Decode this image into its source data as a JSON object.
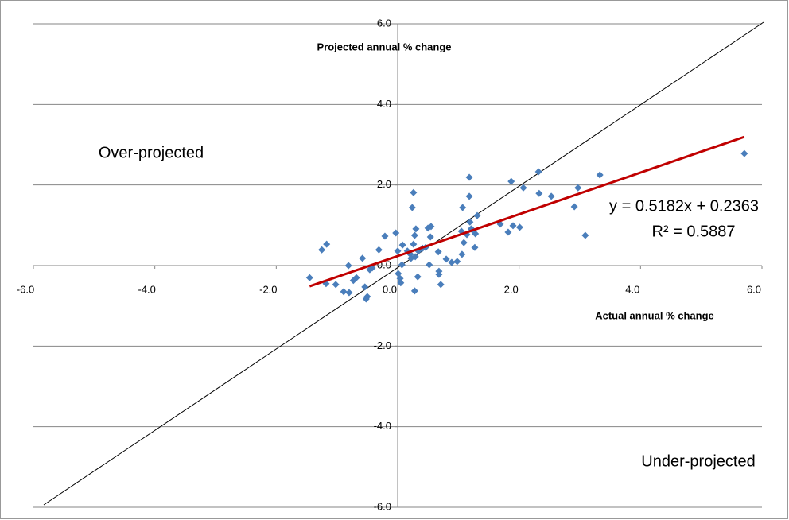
{
  "chart_data": {
    "type": "scatter",
    "x_label": "Actual annual % change",
    "y_label": "Projected annual % change",
    "annotations": [
      "Over-projected",
      "Under-projected"
    ],
    "xlim": [
      -6,
      6
    ],
    "ylim": [
      -6,
      6
    ],
    "xticks": [
      {
        "value": -6,
        "label": "-6.0"
      },
      {
        "value": -4,
        "label": "-4.0"
      },
      {
        "value": -2,
        "label": "-2.0"
      },
      {
        "value": 0,
        "label": "0.0"
      },
      {
        "value": 2,
        "label": "2.0"
      },
      {
        "value": 4,
        "label": "4.0"
      },
      {
        "value": 6,
        "label": "6.0"
      }
    ],
    "yticks": [
      {
        "value": -6,
        "label": "-6.0"
      },
      {
        "value": -4,
        "label": "-4.0"
      },
      {
        "value": -2,
        "label": "-2.0"
      },
      {
        "value": 0,
        "label": "0.0"
      },
      {
        "value": 2,
        "label": "2.0"
      },
      {
        "value": 4,
        "label": "4.0"
      },
      {
        "value": 6,
        "label": "6.0"
      }
    ],
    "grid": true,
    "color": "#4a7ebb",
    "x": [
      -1.45,
      -1.25,
      -1.17,
      -1.18,
      -1.02,
      -0.89,
      -0.8,
      -0.81,
      -0.73,
      -0.68,
      -0.58,
      -0.54,
      -0.52,
      -0.5,
      -0.46,
      -0.31,
      -0.21,
      -0.03,
      0.0,
      0.01,
      0.04,
      0.05,
      0.07,
      0.16,
      0.21,
      0.22,
      0.24,
      0.26,
      0.26,
      0.28,
      0.29,
      0.3,
      0.28,
      0.33,
      0.41,
      0.46,
      0.5,
      0.52,
      0.55,
      0.67,
      0.68,
      0.71,
      0.68,
      0.98,
      1.06,
      1.07,
      1.09,
      1.14,
      1.18,
      1.19,
      1.23,
      1.27,
      1.28,
      1.31,
      1.69,
      1.82,
      1.87,
      1.9,
      2.01,
      2.07,
      2.32,
      2.33,
      2.53,
      2.91,
      2.97,
      3.09,
      3.33,
      5.71,
      1.18,
      0.8,
      0.89,
      0.54,
      0.08,
      0.34,
      -0.42,
      1.05,
      1.21
    ],
    "values": [
      -0.3,
      0.39,
      0.53,
      -0.45,
      -0.47,
      -0.65,
      -0.67,
      0.0,
      -0.37,
      -0.3,
      0.18,
      -0.53,
      -0.83,
      -0.77,
      -0.1,
      0.39,
      0.73,
      0.81,
      0.36,
      -0.2,
      -0.32,
      -0.43,
      0.02,
      0.36,
      0.28,
      0.18,
      1.44,
      1.81,
      0.53,
      -0.63,
      0.22,
      0.91,
      0.75,
      -0.28,
      0.43,
      0.45,
      0.93,
      0.02,
      0.97,
      0.34,
      -0.14,
      -0.47,
      -0.22,
      0.1,
      0.28,
      1.44,
      0.57,
      0.77,
      2.19,
      1.08,
      0.89,
      0.45,
      0.79,
      1.24,
      1.03,
      0.83,
      2.09,
      0.99,
      0.95,
      1.93,
      2.33,
      1.79,
      1.72,
      1.46,
      1.93,
      0.75,
      2.25,
      2.78,
      1.72,
      0.16,
      0.08,
      0.71,
      0.51,
      0.36,
      -0.06,
      0.85,
      0.91
    ],
    "trendline": {
      "equation": "y = 0.5182x + 0.2363",
      "r_squared": "R² = 0.5887",
      "slope": 0.5182,
      "intercept": 0.2363,
      "color": "#c00000"
    }
  }
}
